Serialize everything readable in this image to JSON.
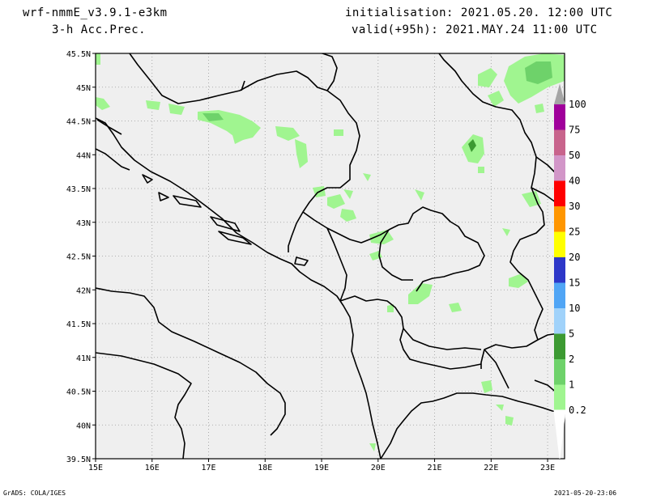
{
  "header": {
    "model": "wrf-nmmE_v3.9.1-e3km",
    "field": "3-h Acc.Prec.",
    "init": "initialisation: 2021.05.20. 12:00 UTC",
    "valid": "valid(+95h): 2021.MAY.24 11:00 UTC"
  },
  "footer": {
    "left": "GrADS: COLA/IGES",
    "right": "2021-05-20-23:06"
  },
  "axes": {
    "lon_ticks": [
      "15E",
      "16E",
      "17E",
      "18E",
      "19E",
      "20E",
      "21E",
      "22E",
      "23E"
    ],
    "lat_ticks": [
      "45.5N",
      "45N",
      "44.5N",
      "44N",
      "43.5N",
      "43N",
      "42.5N",
      "42N",
      "41.5N",
      "41N",
      "40.5N",
      "40N",
      "39.5N"
    ],
    "lon_range": [
      15,
      23.3
    ],
    "lat_range": [
      39.5,
      45.5
    ],
    "grid": "dotted"
  },
  "colorbar": {
    "levels": [
      {
        "label": "0.2",
        "color": "#a0f590"
      },
      {
        "label": "1",
        "color": "#6ed26a"
      },
      {
        "label": "2",
        "color": "#3c9a32"
      },
      {
        "label": "5",
        "color": "#a0d2fa"
      },
      {
        "label": "10",
        "color": "#50a5f5"
      },
      {
        "label": "15",
        "color": "#2d37c8"
      },
      {
        "label": "20",
        "color": "#ffff00"
      },
      {
        "label": "25",
        "color": "#ff9600"
      },
      {
        "label": "30",
        "color": "#ff0000"
      },
      {
        "label": "40",
        "color": "#d296c8"
      },
      {
        "label": "50",
        "color": "#c8648c"
      },
      {
        "label": "75",
        "color": "#a0009b"
      },
      {
        "label": "100",
        "color": "#a5a5a5"
      }
    ]
  },
  "colors": {
    "background": "#efefef",
    "border": "#000000",
    "grid": "#9a9a9a"
  }
}
